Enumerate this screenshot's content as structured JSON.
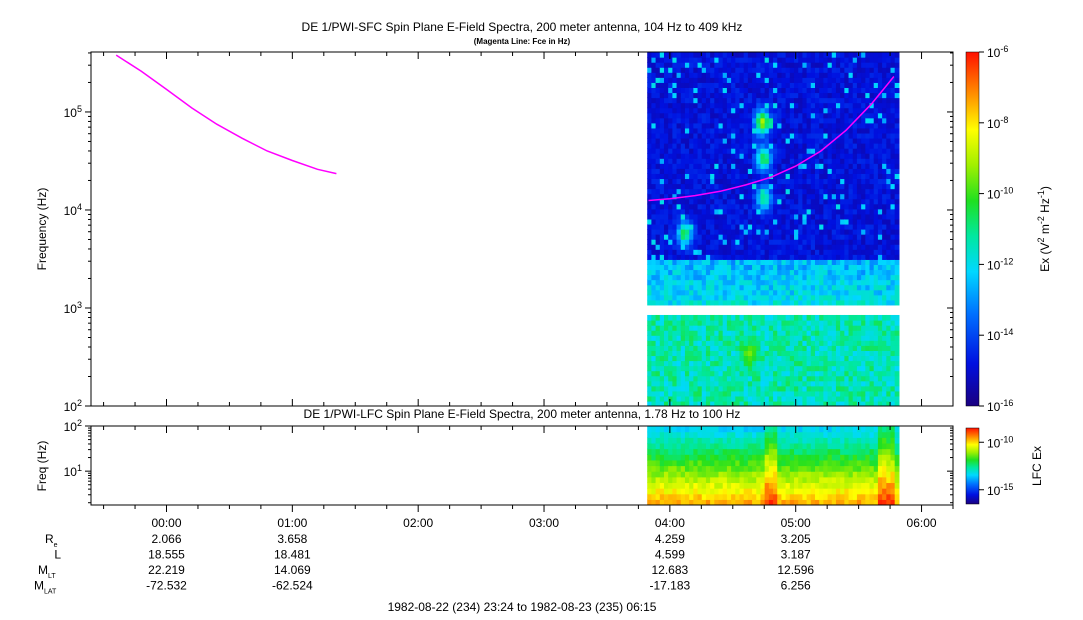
{
  "chart_data": [
    {
      "type": "heatmap",
      "title": "DE 1/PWI-SFC  Spin Plane E-Field Spectra, 200 meter antenna, 104 Hz to 409 kHz",
      "subtitle": "(Magenta Line: Fce in Hz)",
      "ylabel": "Frequency (Hz)",
      "yscale": "log",
      "ylim": [
        100,
        409000
      ],
      "yticks": [
        {
          "value": 100,
          "base": "10",
          "exp": "2"
        },
        {
          "value": 1000,
          "base": "10",
          "exp": "3"
        },
        {
          "value": 10000,
          "base": "10",
          "exp": "4"
        },
        {
          "value": 100000,
          "base": "10",
          "exp": "5"
        }
      ],
      "colorbar": {
        "label_pre": "Ex (V",
        "label_sup1": "2",
        "label_mid": " m",
        "label_sup2": "-2",
        "label_mid2": " Hz",
        "label_sup3": "-1",
        "label_post": ")",
        "scale": "log",
        "range": [
          1e-16,
          1e-06
        ],
        "ticks": [
          {
            "value": -6,
            "base": "10",
            "exp": "-6"
          },
          {
            "value": -8,
            "base": "10",
            "exp": "-8"
          },
          {
            "value": -10,
            "base": "10",
            "exp": "-10"
          },
          {
            "value": -12,
            "base": "10",
            "exp": "-12"
          },
          {
            "value": -14,
            "base": "10",
            "exp": "-14"
          },
          {
            "value": -16,
            "base": "10",
            "exp": "-16"
          }
        ]
      },
      "data_time_range_hours": [
        3.82,
        5.82
      ],
      "data_gap_hz": [
        910,
        1050
      ],
      "series": [
        {
          "name": "Fce",
          "color": "#ff00ff",
          "segments": [
            [
              [
                -0.4,
                380000
              ],
              [
                -0.2,
                260000
              ],
              [
                0,
                170000
              ],
              [
                0.2,
                110000
              ],
              [
                0.4,
                75000
              ],
              [
                0.6,
                54000
              ],
              [
                0.8,
                40000
              ],
              [
                1.0,
                32000
              ],
              [
                1.2,
                26000
              ],
              [
                1.35,
                23500
              ]
            ],
            [
              [
                3.83,
                12500
              ],
              [
                4.0,
                13000
              ],
              [
                4.2,
                14000
              ],
              [
                4.4,
                15500
              ],
              [
                4.6,
                18000
              ],
              [
                4.8,
                21500
              ],
              [
                5.0,
                28000
              ],
              [
                5.2,
                40000
              ],
              [
                5.4,
                65000
              ],
              [
                5.6,
                120000
              ],
              [
                5.78,
                230000
              ]
            ]
          ]
        }
      ],
      "features": [
        {
          "time": 4.72,
          "freq": 75000,
          "level": -9
        },
        {
          "time": 4.73,
          "freq": 32000,
          "level": -10.5
        },
        {
          "time": 4.62,
          "freq": 330,
          "level": -9.5
        },
        {
          "time": 4.1,
          "freq": 5500,
          "level": -10.5
        },
        {
          "time": 4.73,
          "freq": 12500,
          "level": -11
        }
      ]
    },
    {
      "type": "heatmap",
      "title": "DE 1/PWI-LFC  Spin Plane E-Field Spectra, 200 meter antenna, 1.78 Hz to 100 Hz",
      "ylabel": "Freq (Hz)",
      "yscale": "log",
      "ylim": [
        1.78,
        100
      ],
      "yticks": [
        {
          "value": 10,
          "base": "10",
          "exp": "1"
        },
        {
          "value": 100,
          "base": "10",
          "exp": "2"
        }
      ],
      "colorbar": {
        "label": "LFC Ex",
        "scale": "log",
        "range": [
          1e-16,
          1e-08
        ],
        "ticks": [
          {
            "value": -10,
            "base": "10",
            "exp": "-10"
          },
          {
            "value": -15,
            "base": "10",
            "exp": "-15"
          }
        ]
      },
      "data_time_range_hours": [
        3.82,
        5.82
      ]
    }
  ],
  "time_axis": {
    "range_hours": [
      -0.6,
      6.25
    ],
    "ticks": [
      {
        "hour": 0,
        "label": "00:00"
      },
      {
        "hour": 1,
        "label": "01:00"
      },
      {
        "hour": 2,
        "label": "02:00"
      },
      {
        "hour": 3,
        "label": "03:00"
      },
      {
        "hour": 4,
        "label": "04:00"
      },
      {
        "hour": 5,
        "label": "05:00"
      },
      {
        "hour": 6,
        "label": "06:00"
      }
    ],
    "minor_step_minutes": 15
  },
  "ephemeris": {
    "rows": [
      {
        "name": "R",
        "sub": "e",
        "values": [
          {
            "hour": 0,
            "text": "2.066"
          },
          {
            "hour": 1,
            "text": "3.658"
          },
          {
            "hour": 4,
            "text": "4.259"
          },
          {
            "hour": 5,
            "text": "3.205"
          }
        ]
      },
      {
        "name": "L",
        "sub": "",
        "values": [
          {
            "hour": 0,
            "text": "18.555"
          },
          {
            "hour": 1,
            "text": "18.481"
          },
          {
            "hour": 4,
            "text": "4.599"
          },
          {
            "hour": 5,
            "text": "3.187"
          }
        ]
      },
      {
        "name": "M",
        "sub": "LT",
        "values": [
          {
            "hour": 0,
            "text": "22.219"
          },
          {
            "hour": 1,
            "text": "14.069"
          },
          {
            "hour": 4,
            "text": "12.683"
          },
          {
            "hour": 5,
            "text": "12.596"
          }
        ]
      },
      {
        "name": "M",
        "sub": "LAT",
        "values": [
          {
            "hour": 0,
            "text": "-72.532"
          },
          {
            "hour": 1,
            "text": "-62.524"
          },
          {
            "hour": 4,
            "text": "-17.183"
          },
          {
            "hour": 5,
            "text": "6.256"
          }
        ]
      }
    ]
  },
  "footer": "1982-08-22 (234) 23:24 to 1982-08-23 (235) 06:15"
}
